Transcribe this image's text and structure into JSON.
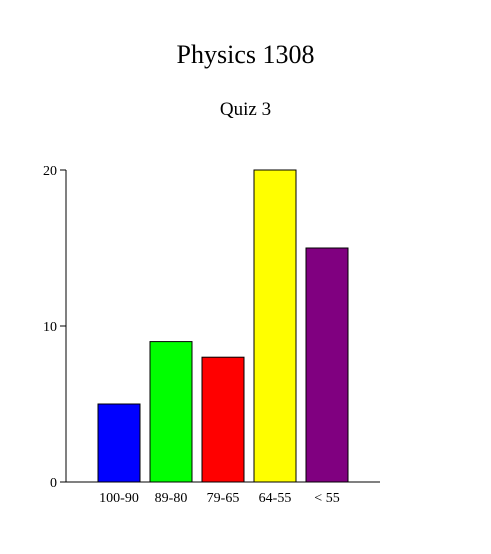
{
  "chart_data": {
    "type": "bar",
    "title": "Physics 1308",
    "subtitle": "Quiz 3",
    "xlabel": "",
    "ylabel": "",
    "categories": [
      "100-90",
      "89-80",
      "79-65",
      "64-55",
      "< 55"
    ],
    "values": [
      5,
      9,
      8,
      20,
      15
    ],
    "colors": [
      "#0000ff",
      "#00ff00",
      "#ff0000",
      "#ffff00",
      "#800080"
    ],
    "ylim": [
      0,
      20
    ],
    "yticks": [
      0,
      10,
      20
    ],
    "grid": false,
    "legend": "none"
  }
}
